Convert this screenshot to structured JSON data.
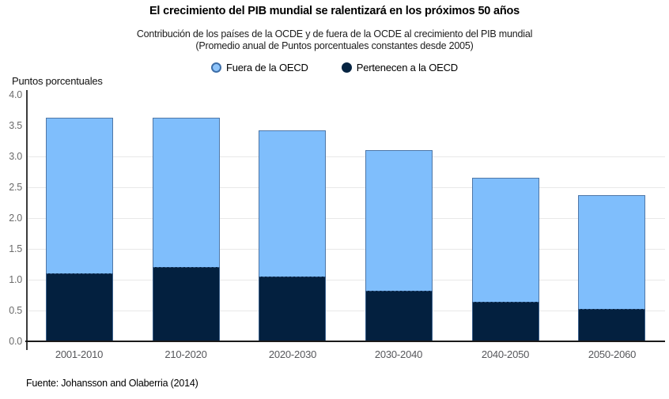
{
  "header": {
    "title": "El crecimiento del PIB mundial se ralentizará en los próximos 50 años",
    "subtitle_line1": "Contribución de los países de la OCDE y de fuera de la OCDE al crecimiento del PIB mundial",
    "subtitle_line2": "(Promedio anual de Puntos porcentuales constantes desde 2005)"
  },
  "legend": [
    {
      "label": "Fuera de la OECD",
      "color": "#7FBEFC",
      "border": "#3D6EA8"
    },
    {
      "label": "Pertenecen a la OECD",
      "color": "#062442",
      "border": "#062442"
    }
  ],
  "axis": {
    "y_title": "Puntos porcentuales"
  },
  "chart_data": {
    "type": "bar",
    "stacked": true,
    "title": "El crecimiento del PIB mundial se ralentizará en los próximos 50 años",
    "subtitle": "Contribución de los países de la OCDE y de fuera de la OCDE al crecimiento del PIB mundial (Promedio anual de Puntos porcentuales constantes desde 2005)",
    "ylabel": "Puntos porcentuales",
    "xlabel": "",
    "categories": [
      "2001-2010",
      "210-2020",
      "2020-2030",
      "2030-2040",
      "2040-2050",
      "2050-2060"
    ],
    "series": [
      {
        "name": "Pertenecen a la OECD",
        "color": "#03203F",
        "values": [
          1.1,
          1.2,
          1.05,
          0.82,
          0.64,
          0.53
        ]
      },
      {
        "name": "Fuera de la OECD",
        "color": "#7FBEFC",
        "values": [
          2.52,
          2.42,
          2.37,
          2.28,
          2.01,
          1.84
        ]
      }
    ],
    "totals": [
      3.62,
      3.62,
      3.42,
      3.1,
      2.65,
      2.37
    ],
    "ylim": [
      0,
      4
    ],
    "yticks": [
      0.0,
      0.5,
      1.0,
      1.5,
      2.0,
      2.5,
      3.0,
      3.5,
      4.0
    ],
    "gridlines_at": [
      0.5,
      1.0,
      1.5,
      2.0,
      2.5,
      3.0
    ],
    "grid": true,
    "legend_position": "top-center"
  },
  "source": "Fuente: Johansson and Olaberria (2014)"
}
